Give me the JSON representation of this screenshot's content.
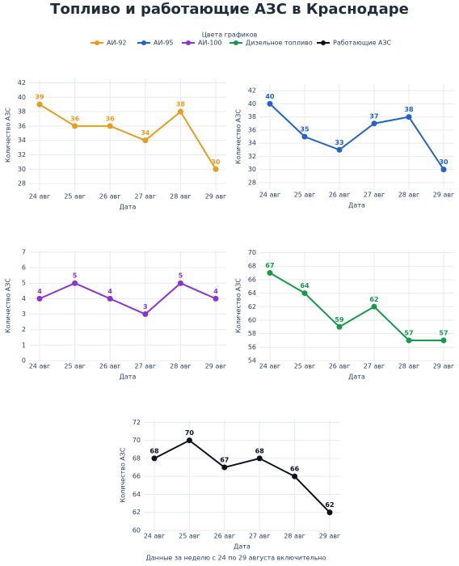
{
  "title": "Топливо и работающие АЗС в Краснодаре",
  "legend_title": "Цвета графиков",
  "footnote": "Данные за неделю с 24 по 29 августа включительно",
  "chart_data": [
    {
      "type": "line",
      "x_label": "Дата",
      "y_label": "Количество АЗС",
      "grid": true,
      "categories": [
        "24 авг",
        "25 авг",
        "26 авг",
        "27 авг",
        "28 авг",
        "29 авг"
      ],
      "series": [
        {
          "name": "АИ-92",
          "color": "#e89c1c",
          "values": [
            39,
            36,
            36,
            34,
            38,
            30
          ]
        }
      ],
      "ylim": [
        27,
        42.5
      ],
      "yticks": [
        28,
        30,
        32,
        34,
        36,
        38,
        40,
        42
      ]
    },
    {
      "type": "line",
      "x_label": "Дата",
      "y_label": "Количество АЗС",
      "grid": true,
      "categories": [
        "24 авг",
        "25 авг",
        "26 авг",
        "27 авг",
        "28 авг",
        "29 авг"
      ],
      "series": [
        {
          "name": "АИ-95",
          "color": "#2263c9",
          "values": [
            40,
            35,
            33,
            37,
            38,
            30
          ]
        }
      ],
      "ylim": [
        27,
        43
      ],
      "yticks": [
        28,
        30,
        32,
        34,
        36,
        38,
        40,
        42
      ]
    },
    {
      "type": "line",
      "x_label": "Дата",
      "y_label": "Количество АЗС",
      "grid": true,
      "categories": [
        "24 авг",
        "25 авг",
        "26 авг",
        "27 авг",
        "28 авг",
        "29 авг"
      ],
      "series": [
        {
          "name": "АИ-100",
          "color": "#8a34d4",
          "values": [
            4,
            5,
            4,
            3,
            5,
            4
          ]
        }
      ],
      "ylim": [
        0,
        7.1
      ],
      "yticks": [
        0,
        1,
        2,
        3,
        4,
        5,
        6,
        7
      ]
    },
    {
      "type": "line",
      "x_label": "Дата",
      "y_label": "Количество АЗС",
      "grid": true,
      "categories": [
        "24 авг",
        "25 авг",
        "26 авг",
        "27 авг",
        "28 авг",
        "29 авг"
      ],
      "series": [
        {
          "name": "Дизельное топливо",
          "color": "#17994b",
          "values": [
            67,
            64,
            59,
            62,
            57,
            57
          ]
        }
      ],
      "ylim": [
        54,
        70.3
      ],
      "yticks": [
        54,
        56,
        58,
        60,
        62,
        64,
        66,
        68,
        70
      ]
    },
    {
      "type": "line",
      "x_label": "Дата",
      "y_label": "Количество АЗС",
      "grid": true,
      "categories": [
        "24 авг",
        "25 авг",
        "26 авг",
        "27 авг",
        "28 авг",
        "29 авг"
      ],
      "series": [
        {
          "name": "Работающие АЗС",
          "color": "#10111f",
          "values": [
            68,
            70,
            67,
            68,
            66,
            62
          ]
        }
      ],
      "ylim": [
        60,
        72.3
      ],
      "yticks": [
        60,
        62,
        64,
        66,
        68,
        70,
        72
      ]
    }
  ]
}
